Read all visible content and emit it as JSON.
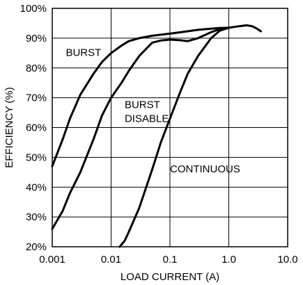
{
  "chart_data": {
    "type": "line",
    "xlabel": "LOAD CURRENT (A)",
    "ylabel": "EFFICIENCY (%)",
    "x_scale": "log",
    "xlim": [
      0.001,
      10.0
    ],
    "ylim": [
      20,
      100
    ],
    "x_ticks": [
      "0.001",
      "0.01",
      "0.1",
      "1.0",
      "10.0"
    ],
    "y_ticks": [
      "20%",
      "30%",
      "40%",
      "50%",
      "60%",
      "70%",
      "80%",
      "90%",
      "100%"
    ],
    "grid": true,
    "series": [
      {
        "name": "BURST",
        "label_lines": [
          "BURST"
        ],
        "points": [
          [
            0.001,
            47
          ],
          [
            0.0015,
            56
          ],
          [
            0.002,
            63
          ],
          [
            0.003,
            71
          ],
          [
            0.005,
            78
          ],
          [
            0.007,
            82
          ],
          [
            0.01,
            85
          ],
          [
            0.015,
            87.5
          ],
          [
            0.02,
            89
          ],
          [
            0.03,
            90
          ],
          [
            0.05,
            90.8
          ],
          [
            0.1,
            91.5
          ],
          [
            0.2,
            92.3
          ],
          [
            0.3,
            92.8
          ],
          [
            0.5,
            93.2
          ],
          [
            0.7,
            93.4
          ],
          [
            1.0,
            93.5
          ]
        ]
      },
      {
        "name": "BURST DISABLE",
        "label_lines": [
          "BURST",
          "DISABLE"
        ],
        "points": [
          [
            0.001,
            26
          ],
          [
            0.0015,
            32
          ],
          [
            0.002,
            38
          ],
          [
            0.003,
            45
          ],
          [
            0.005,
            56
          ],
          [
            0.007,
            64
          ],
          [
            0.01,
            70
          ],
          [
            0.015,
            75
          ],
          [
            0.02,
            79
          ],
          [
            0.03,
            84
          ],
          [
            0.05,
            88.5
          ],
          [
            0.07,
            89.2
          ],
          [
            0.1,
            89.5
          ],
          [
            0.15,
            89.3
          ],
          [
            0.2,
            89
          ],
          [
            0.3,
            90
          ],
          [
            0.5,
            92
          ],
          [
            0.7,
            93
          ],
          [
            1.0,
            93.5
          ]
        ]
      },
      {
        "name": "CONTINUOUS",
        "label_lines": [
          "CONTINUOUS"
        ],
        "points": [
          [
            0.014,
            20
          ],
          [
            0.017,
            22
          ],
          [
            0.02,
            25
          ],
          [
            0.03,
            33
          ],
          [
            0.05,
            46
          ],
          [
            0.07,
            55
          ],
          [
            0.1,
            63
          ],
          [
            0.15,
            72
          ],
          [
            0.2,
            78
          ],
          [
            0.3,
            84
          ],
          [
            0.5,
            90
          ],
          [
            0.7,
            92.5
          ],
          [
            1.0,
            93.5
          ],
          [
            1.5,
            94
          ],
          [
            2.0,
            94.3
          ],
          [
            2.5,
            94
          ],
          [
            3.0,
            93.2
          ],
          [
            3.5,
            92.3
          ]
        ]
      }
    ]
  }
}
